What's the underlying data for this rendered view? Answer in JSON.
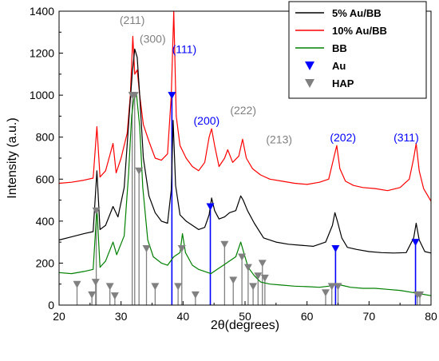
{
  "chart_data": {
    "type": "line",
    "xlabel": "2θ(degrees)",
    "ylabel": "Intensity (a.u.)",
    "xlim": [
      20,
      80
    ],
    "ylim": [
      0,
      1400
    ],
    "xticks": [
      20,
      30,
      40,
      50,
      60,
      70,
      80
    ],
    "yticks": [
      0,
      200,
      400,
      600,
      800,
      1000,
      1200,
      1400
    ],
    "legend_position": "top-right",
    "legend": [
      {
        "label": "5% Au/BB",
        "kind": "line",
        "color": "#000000"
      },
      {
        "label": "10% Au/BB",
        "kind": "line",
        "color": "#ff0000"
      },
      {
        "label": "BB",
        "kind": "line",
        "color": "#008000"
      },
      {
        "label": "Au",
        "kind": "marker",
        "color": "#0000ff"
      },
      {
        "label": "HAP",
        "kind": "marker",
        "color": "#808080"
      }
    ],
    "series": [
      {
        "name": "10% Au/BB",
        "color": "#ff0000",
        "x": [
          20,
          22,
          24,
          25.5,
          26.1,
          26.6,
          27.5,
          28.7,
          29.2,
          30,
          31,
          31.5,
          31.9,
          32.2,
          32.6,
          33,
          33.6,
          34.5,
          35.5,
          36.5,
          37.5,
          38.1,
          38.5,
          38.9,
          39.5,
          40.5,
          41.5,
          42.5,
          43.5,
          44.2,
          44.6,
          45.1,
          45.8,
          46.7,
          47.2,
          48,
          49,
          49.6,
          50.2,
          51.2,
          52.5,
          54,
          56,
          58,
          60,
          62,
          63.5,
          64.3,
          64.8,
          65.3,
          66.2,
          67.5,
          69,
          71,
          73,
          75,
          76.5,
          77.2,
          77.6,
          78.1,
          78.8,
          80
        ],
        "y": [
          580,
          585,
          595,
          605,
          850,
          610,
          640,
          770,
          630,
          700,
          820,
          1000,
          1280,
          1100,
          1120,
          1000,
          860,
          780,
          700,
          690,
          720,
          1000,
          1400,
          900,
          760,
          700,
          660,
          640,
          680,
          800,
          840,
          760,
          660,
          700,
          740,
          680,
          710,
          790,
          700,
          650,
          620,
          600,
          590,
          580,
          575,
          585,
          600,
          700,
          760,
          650,
          590,
          570,
          560,
          555,
          545,
          560,
          600,
          700,
          770,
          640,
          555,
          495
        ]
      },
      {
        "name": "5% Au/BB",
        "color": "#000000",
        "x": [
          20,
          22,
          24,
          25.5,
          26.1,
          26.6,
          27.5,
          28.7,
          29.5,
          30.5,
          31.3,
          31.8,
          32.2,
          32.6,
          33,
          33.6,
          34.5,
          35.5,
          36.5,
          37.5,
          38.1,
          38.4,
          38.8,
          39.5,
          40.5,
          41.5,
          42.5,
          43.5,
          44.2,
          44.6,
          45.1,
          45.8,
          46.7,
          47.5,
          48.5,
          49.3,
          49.7,
          50.4,
          51.5,
          53,
          55,
          57,
          59,
          61,
          63,
          64.1,
          64.5,
          64.9,
          65.6,
          66.5,
          68,
          70,
          72,
          74,
          76,
          77.2,
          77.6,
          78.1,
          79,
          80
        ],
        "y": [
          310,
          325,
          340,
          350,
          640,
          360,
          380,
          470,
          420,
          560,
          900,
          1100,
          1220,
          1180,
          1000,
          700,
          520,
          440,
          400,
          390,
          550,
          880,
          570,
          430,
          400,
          380,
          360,
          370,
          430,
          510,
          450,
          410,
          420,
          440,
          450,
          520,
          500,
          450,
          390,
          320,
          300,
          290,
          285,
          280,
          300,
          380,
          440,
          400,
          320,
          275,
          265,
          255,
          250,
          248,
          250,
          320,
          390,
          310,
          255,
          248
        ]
      },
      {
        "name": "BB",
        "color": "#008000",
        "x": [
          20,
          22,
          24,
          25.5,
          26.1,
          26.6,
          27.5,
          28.7,
          29.3,
          30.5,
          31.2,
          31.7,
          32.1,
          32.5,
          33,
          33.5,
          34.3,
          35.2,
          36.5,
          37.5,
          38.5,
          39.5,
          39.9,
          40.4,
          41.5,
          42.5,
          43.5,
          44.5,
          45.5,
          46.5,
          47.5,
          48.5,
          49.3,
          49.8,
          50.5,
          51.5,
          52.5,
          54,
          56,
          58,
          60,
          62,
          63.5,
          64.5,
          65.5,
          67,
          69,
          71,
          73,
          75,
          77,
          78,
          80
        ],
        "y": [
          155,
          150,
          160,
          170,
          460,
          180,
          210,
          300,
          240,
          330,
          620,
          900,
          990,
          1000,
          850,
          560,
          310,
          230,
          200,
          190,
          230,
          250,
          340,
          250,
          190,
          170,
          160,
          150,
          170,
          190,
          210,
          230,
          300,
          250,
          180,
          140,
          110,
          100,
          95,
          90,
          88,
          85,
          90,
          100,
          95,
          85,
          80,
          80,
          75,
          70,
          60,
          55,
          45
        ]
      }
    ],
    "reference_markers": {
      "Au": {
        "color": "#0000ff",
        "peaks": [
          {
            "x": 38.2,
            "y": 1000
          },
          {
            "x": 44.4,
            "y": 470
          },
          {
            "x": 64.6,
            "y": 270
          },
          {
            "x": 77.5,
            "y": 300
          }
        ]
      },
      "HAP": {
        "color": "#808080",
        "peaks": [
          {
            "x": 22.9,
            "y": 100
          },
          {
            "x": 25.3,
            "y": 50
          },
          {
            "x": 25.9,
            "y": 110
          },
          {
            "x": 26.0,
            "y": 450
          },
          {
            "x": 28.2,
            "y": 90
          },
          {
            "x": 29.0,
            "y": 45
          },
          {
            "x": 31.8,
            "y": 1000
          },
          {
            "x": 32.2,
            "y": 1000
          },
          {
            "x": 32.9,
            "y": 640
          },
          {
            "x": 34.1,
            "y": 270
          },
          {
            "x": 35.5,
            "y": 90
          },
          {
            "x": 39.2,
            "y": 90
          },
          {
            "x": 39.8,
            "y": 270
          },
          {
            "x": 42.0,
            "y": 50
          },
          {
            "x": 46.7,
            "y": 290
          },
          {
            "x": 48.1,
            "y": 120
          },
          {
            "x": 49.5,
            "y": 230
          },
          {
            "x": 50.5,
            "y": 180
          },
          {
            "x": 51.3,
            "y": 90
          },
          {
            "x": 52.1,
            "y": 140
          },
          {
            "x": 52.8,
            "y": 200
          },
          {
            "x": 53.2,
            "y": 130
          },
          {
            "x": 63.0,
            "y": 60
          },
          {
            "x": 64.0,
            "y": 90
          },
          {
            "x": 65.0,
            "y": 90
          },
          {
            "x": 77.8,
            "y": 50
          },
          {
            "x": 78.2,
            "y": 50
          }
        ]
      }
    },
    "annotations": [
      {
        "text": "(211)",
        "x": 31.8,
        "y": 1340,
        "color": "#808080",
        "size": 16
      },
      {
        "text": "(300)",
        "x": 35.1,
        "y": 1250,
        "color": "#808080",
        "size": 14
      },
      {
        "text": "(111)",
        "x": 40.2,
        "y": 1200,
        "color": "#0000ff",
        "size": 14
      },
      {
        "text": "(200)",
        "x": 43.8,
        "y": 860,
        "color": "#0000ff",
        "size": 14
      },
      {
        "text": "(222)",
        "x": 49.7,
        "y": 910,
        "color": "#808080",
        "size": 16
      },
      {
        "text": "(213)",
        "x": 55.5,
        "y": 770,
        "color": "#808080",
        "size": 16
      },
      {
        "text": "(202)",
        "x": 65.8,
        "y": 780,
        "color": "#0000ff",
        "size": 14
      },
      {
        "text": "(311)",
        "x": 76.0,
        "y": 780,
        "color": "#0000ff",
        "size": 14
      }
    ]
  }
}
